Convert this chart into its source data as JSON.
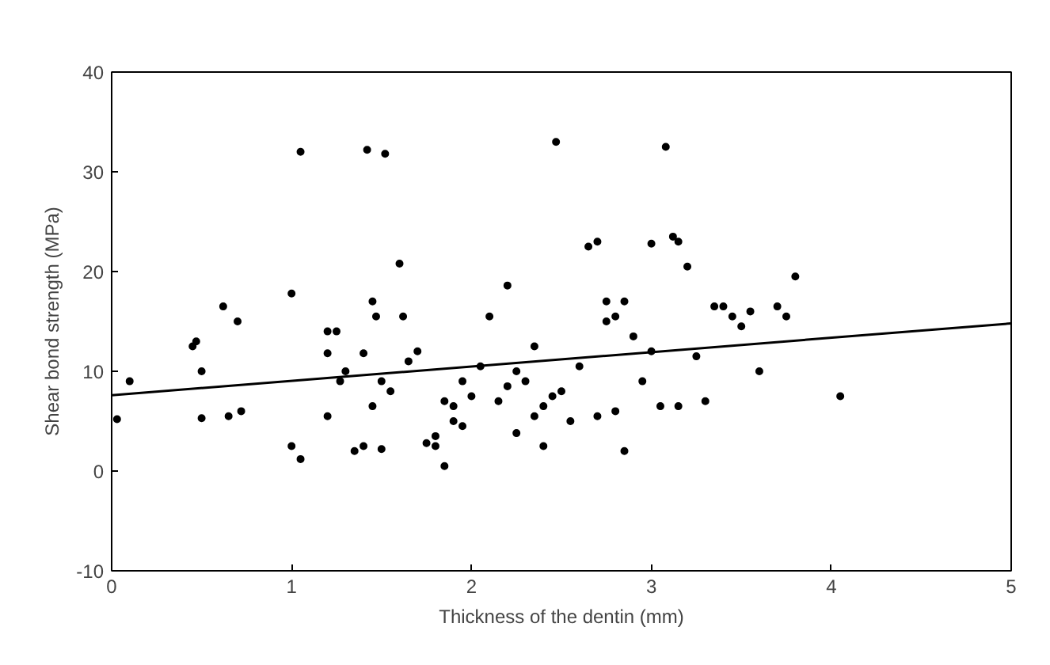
{
  "chart_data": {
    "type": "scatter",
    "xlabel": "Thickness of the dentin (mm)",
    "ylabel": "Shear bond strength (MPa)",
    "xlim": [
      0,
      5
    ],
    "ylim": [
      -10,
      40
    ],
    "xticks": [
      0,
      1,
      2,
      3,
      4,
      5
    ],
    "yticks": [
      -10,
      0,
      10,
      20,
      30,
      40
    ],
    "grid": false,
    "marker": "circle",
    "series": [
      {
        "color": "#000000",
        "x": [
          0.03,
          0.1,
          0.45,
          0.47,
          0.5,
          0.5,
          0.62,
          0.65,
          0.7,
          0.72,
          1.0,
          1.0,
          1.05,
          1.05,
          1.2,
          1.2,
          1.2,
          1.25,
          1.27,
          1.3,
          1.35,
          1.4,
          1.4,
          1.42,
          1.45,
          1.45,
          1.47,
          1.5,
          1.5,
          1.52,
          1.55,
          1.6,
          1.62,
          1.65,
          1.7,
          1.75,
          1.8,
          1.8,
          1.85,
          1.85,
          1.9,
          1.9,
          1.95,
          1.95,
          2.0,
          2.05,
          2.1,
          2.15,
          2.2,
          2.2,
          2.25,
          2.25,
          2.3,
          2.35,
          2.35,
          2.4,
          2.4,
          2.45,
          2.47,
          2.5,
          2.55,
          2.6,
          2.65,
          2.7,
          2.7,
          2.75,
          2.75,
          2.8,
          2.8,
          2.85,
          2.85,
          2.9,
          2.95,
          3.0,
          3.0,
          3.05,
          3.08,
          3.12,
          3.15,
          3.15,
          3.2,
          3.25,
          3.3,
          3.35,
          3.4,
          3.45,
          3.5,
          3.55,
          3.6,
          3.7,
          3.75,
          3.8,
          4.05
        ],
        "values": [
          5.2,
          9,
          12.5,
          13,
          10,
          5.3,
          16.5,
          5.5,
          15,
          6,
          17.8,
          2.5,
          1.2,
          32,
          14,
          11.8,
          5.5,
          14,
          9,
          10,
          2,
          2.5,
          11.8,
          32.2,
          17,
          6.5,
          15.5,
          2.2,
          9,
          31.8,
          8,
          20.8,
          15.5,
          11,
          12,
          2.8,
          2.5,
          3.5,
          0.5,
          7,
          5,
          6.5,
          4.5,
          9,
          7.5,
          10.5,
          15.5,
          7,
          18.6,
          8.5,
          3.8,
          10,
          9,
          5.5,
          12.5,
          2.5,
          6.5,
          7.5,
          33,
          8,
          5,
          10.5,
          22.5,
          23,
          5.5,
          17,
          15,
          15.5,
          6,
          2,
          17,
          13.5,
          9,
          22.8,
          12,
          6.5,
          32.5,
          23.5,
          23,
          6.5,
          20.5,
          11.5,
          7,
          16.5,
          16.5,
          15.5,
          14.5,
          16,
          10,
          16.5,
          15.5,
          19.5,
          7.5
        ]
      },
      {
        "type": "line",
        "color": "#000000",
        "x": [
          0,
          5
        ],
        "values": [
          7.6,
          14.8
        ],
        "marker": "none"
      }
    ]
  }
}
